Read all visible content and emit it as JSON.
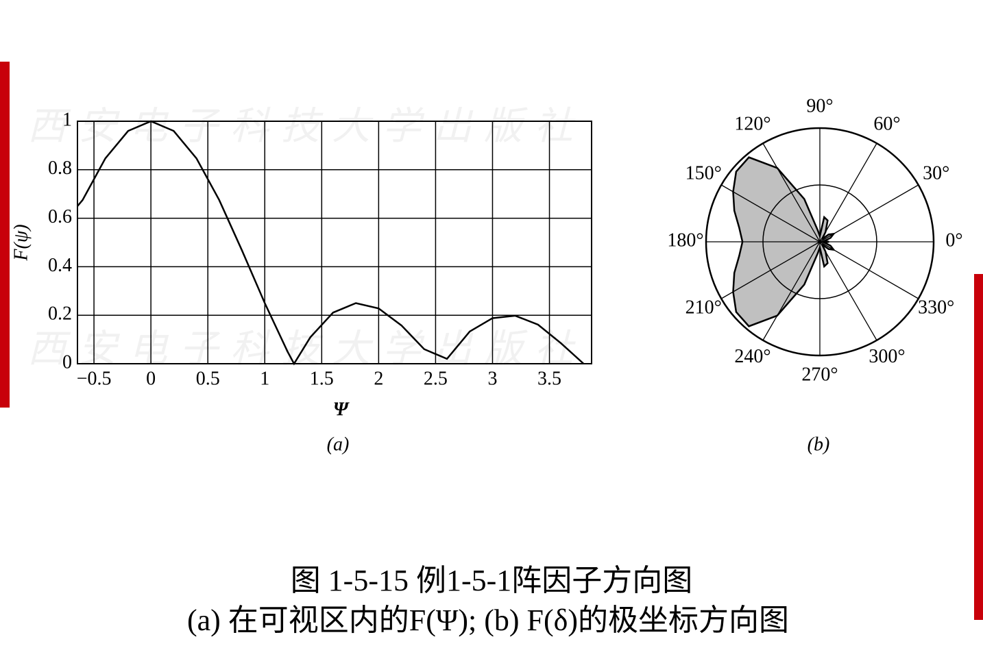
{
  "chart_data": [
    {
      "type": "line",
      "subtitle": "(a)",
      "xlabel": "Ψ",
      "ylabel": "F(ψ)",
      "x": [
        -0.645,
        -0.6,
        -0.4,
        -0.2,
        0,
        0.2,
        0.4,
        0.6,
        0.8,
        1.0,
        1.2,
        1.257,
        1.4,
        1.6,
        1.8,
        2.0,
        2.2,
        2.4,
        2.6,
        2.8,
        3.0,
        3.2,
        3.4,
        3.6,
        3.8
      ],
      "series": [
        {
          "name": "F(Ψ)",
          "color": "#000000",
          "values": [
            0.65,
            0.675,
            0.847,
            0.96,
            1,
            0.96,
            0.847,
            0.675,
            0.467,
            0.25,
            0.05,
            0,
            0.109,
            0.211,
            0.25,
            0.228,
            0.158,
            0.06,
            0.02,
            0.133,
            0.188,
            0.198,
            0.161,
            0.085,
            0
          ]
        }
      ],
      "xlim": [
        -0.645,
        3.87
      ],
      "ylim": [
        0,
        1
      ],
      "xticks": [
        {
          "value": -0.5,
          "label": "−0.5"
        },
        0,
        0.5,
        1,
        1.5,
        2,
        2.5,
        3,
        3.5
      ],
      "yticks": [
        0,
        0.2,
        0.4,
        0.6,
        0.8,
        1
      ],
      "grid": true
    },
    {
      "type": "polar",
      "subtitle": "(b)",
      "color": "#c0c0c0",
      "theta": [
        0,
        10,
        20,
        30,
        40,
        50,
        60,
        70,
        80,
        90,
        100,
        110,
        120,
        130,
        140,
        150,
        160,
        170,
        180,
        190,
        200,
        210,
        220,
        230,
        240,
        250,
        260,
        270,
        280,
        290,
        300,
        310,
        320,
        330,
        340,
        350
      ],
      "values": [
        0.08,
        0.04,
        0.1,
        0.14,
        0.1,
        0.03,
        0.1,
        0.2,
        0.22,
        0.05,
        0.1,
        0.4,
        0.75,
        0.97,
        0.96,
        0.88,
        0.8,
        0.72,
        0.68,
        0.72,
        0.8,
        0.88,
        0.96,
        0.97,
        0.75,
        0.4,
        0.1,
        0.05,
        0.22,
        0.2,
        0.1,
        0.03,
        0.1,
        0.14,
        0.1,
        0.04
      ],
      "rlim": [
        0,
        1
      ],
      "rticks": [
        0.5,
        1
      ],
      "thetaticks": [
        {
          "value": 0,
          "label": "0°"
        },
        {
          "value": 30,
          "label": "30°"
        },
        {
          "value": 60,
          "label": "60°"
        },
        {
          "value": 90,
          "label": "90°"
        },
        {
          "value": 120,
          "label": "120°"
        },
        {
          "value": 150,
          "label": "150°"
        },
        {
          "value": 180,
          "label": "180°"
        },
        {
          "value": 210,
          "label": "210°"
        },
        {
          "value": 240,
          "label": "240°"
        },
        {
          "value": 270,
          "label": "270°"
        },
        {
          "value": 300,
          "label": "300°"
        },
        {
          "value": 330,
          "label": "330°"
        }
      ]
    }
  ],
  "watermark": "西安电子科技大学出版社",
  "caption": [
    "图 1-5-15  例1-5-1阵因子方向图",
    "(a) 在可视区内的F(Ψ); (b) F(δ)的极坐标方向图"
  ]
}
